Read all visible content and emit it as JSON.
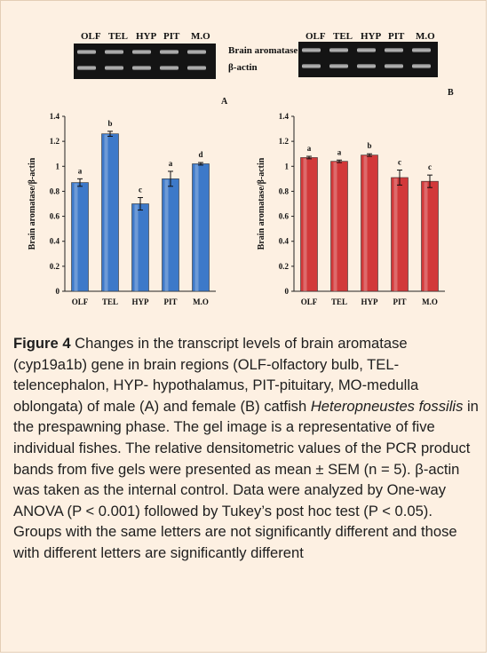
{
  "gel": {
    "lanes_left": [
      "OLF",
      "TEL",
      "HYP",
      "PIT",
      "M.O"
    ],
    "lanes_right": [
      "OLF",
      "TEL",
      "HYP",
      "PIT",
      "M.O"
    ],
    "row_labels": [
      "Brain aromatase",
      "β-actin"
    ]
  },
  "chart_data": [
    {
      "type": "bar",
      "panel_label": "A",
      "categories": [
        "OLF",
        "TEL",
        "HYP",
        "PIT",
        "M.O"
      ],
      "values": [
        0.87,
        1.26,
        0.7,
        0.9,
        1.02
      ],
      "errors": [
        0.03,
        0.02,
        0.05,
        0.06,
        0.01
      ],
      "significance_letters": [
        "a",
        "b",
        "c",
        "a",
        "d"
      ],
      "ylabel": "Brain aromatase/β-actin",
      "ylim": [
        0,
        1.4
      ],
      "yticks": [
        "0",
        "0.2",
        "0.4",
        "0.6",
        "0.8",
        "1",
        "1.2",
        "1.4"
      ],
      "bar_color": "#3d79c9",
      "grid": false
    },
    {
      "type": "bar",
      "panel_label": "B",
      "categories": [
        "OLF",
        "TEL",
        "HYP",
        "PIT",
        "M.O"
      ],
      "values": [
        1.07,
        1.04,
        1.09,
        0.91,
        0.88
      ],
      "errors": [
        0.01,
        0.01,
        0.01,
        0.06,
        0.05
      ],
      "significance_letters": [
        "a",
        "a",
        "b",
        "c",
        "c"
      ],
      "ylabel": "Brain aromatase/β-actin",
      "ylim": [
        0,
        1.4
      ],
      "yticks": [
        "0",
        "0.2",
        "0.4",
        "0.6",
        "0.8",
        "1",
        "1.2",
        "1.4"
      ],
      "bar_color": "#d2393a",
      "grid": false
    }
  ],
  "caption": {
    "label": "Figure 4",
    "text_1": " Changes in the transcript levels of brain aromatase (cyp19a1b) gene in brain regions (OLF-olfactory bulb, TEL-telencephalon, HYP- hypothalamus, PIT-pituitary, MO-medulla oblongata) of male (A) and female (B) catfish ",
    "species": "Heteropneustes fossilis",
    "text_2": " in the prespawning phase. The gel image is a representative of five individual fishes. The relative densitometric values of the PCR product bands from five gels were presented as mean ± SEM (n = 5). β-actin was taken as the internal control. Data were analyzed by One-way ANOVA (P < 0.001) followed by Tukey’s post hoc test (P < 0.05). Groups with the same letters are not significantly different and those with different letters are significantly different"
  }
}
